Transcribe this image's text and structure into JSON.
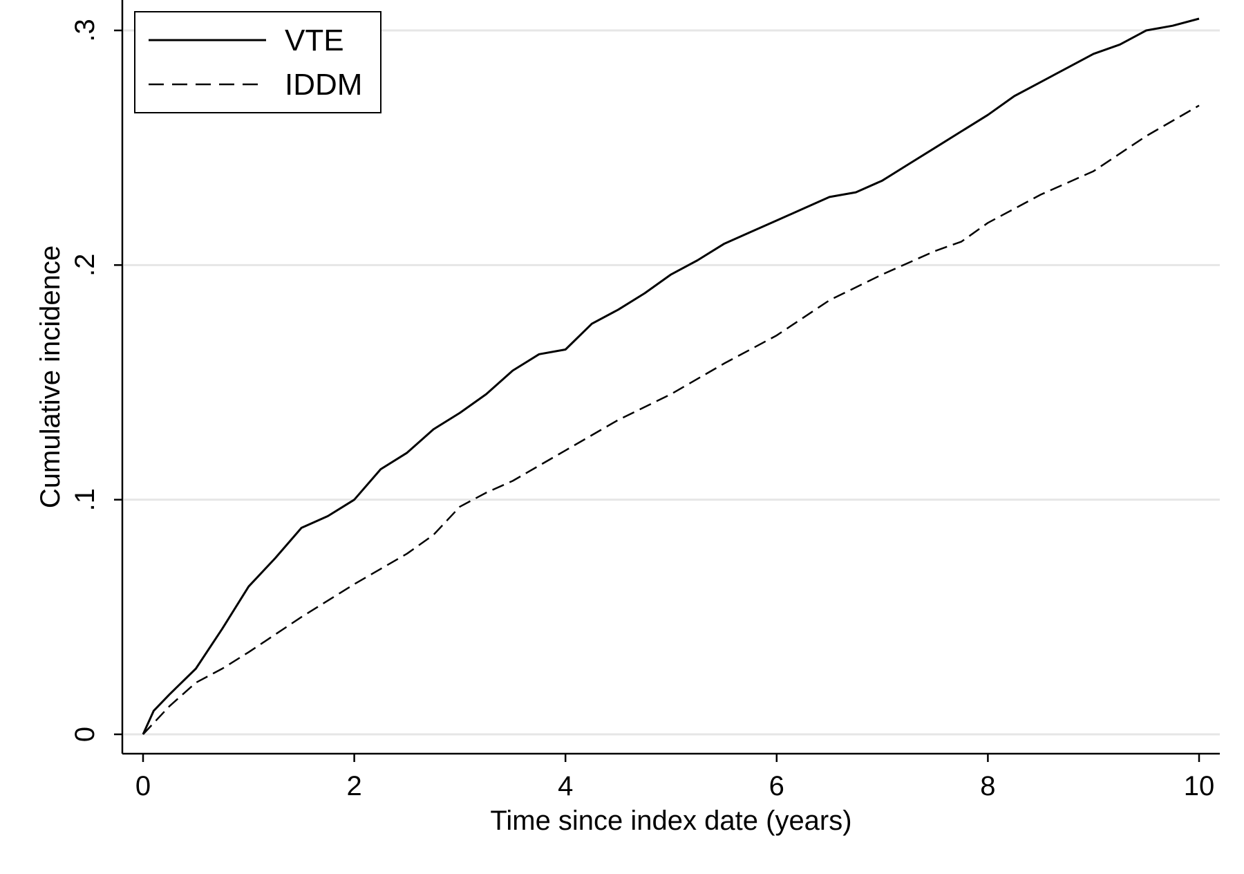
{
  "chart_data": {
    "type": "line",
    "xlabel": "Time since index date (years)",
    "ylabel": "Cumulative incidence",
    "xlim": [
      0,
      10
    ],
    "ylim": [
      0,
      0.3
    ],
    "x_ticks": [
      0,
      2,
      4,
      6,
      8,
      10
    ],
    "x_tick_labels": [
      "0",
      "2",
      "4",
      "6",
      "8",
      "10"
    ],
    "y_ticks": [
      0,
      0.1,
      0.2,
      0.3
    ],
    "y_tick_labels": [
      "0",
      ".1",
      ".2",
      ".3"
    ],
    "grid": true,
    "legend_position": "top-left",
    "series": [
      {
        "name": "VTE",
        "style": "solid",
        "color": "#000000",
        "x": [
          0,
          0.1,
          0.25,
          0.5,
          0.75,
          1.0,
          1.25,
          1.5,
          1.75,
          2.0,
          2.25,
          2.5,
          2.75,
          3.0,
          3.25,
          3.5,
          3.75,
          4.0,
          4.25,
          4.5,
          4.75,
          5.0,
          5.25,
          5.5,
          5.75,
          6.0,
          6.25,
          6.5,
          6.75,
          7.0,
          7.25,
          7.5,
          7.75,
          8.0,
          8.25,
          8.5,
          8.75,
          9.0,
          9.25,
          9.5,
          9.75,
          10.0
        ],
        "y": [
          0,
          0.01,
          0.017,
          0.028,
          0.045,
          0.063,
          0.075,
          0.088,
          0.093,
          0.1,
          0.113,
          0.12,
          0.13,
          0.137,
          0.145,
          0.155,
          0.162,
          0.164,
          0.175,
          0.181,
          0.188,
          0.196,
          0.202,
          0.209,
          0.214,
          0.219,
          0.224,
          0.229,
          0.231,
          0.236,
          0.243,
          0.25,
          0.257,
          0.264,
          0.272,
          0.278,
          0.284,
          0.29,
          0.294,
          0.3,
          0.302,
          0.305
        ]
      },
      {
        "name": "IDDM",
        "style": "dashed",
        "color": "#000000",
        "x": [
          0,
          0.25,
          0.5,
          0.75,
          1.0,
          1.5,
          2.0,
          2.5,
          2.75,
          3.0,
          3.25,
          3.5,
          4.0,
          4.5,
          5.0,
          5.5,
          6.0,
          6.5,
          7.0,
          7.5,
          7.75,
          8.0,
          8.5,
          9.0,
          9.5,
          10.0
        ],
        "y": [
          0,
          0.012,
          0.022,
          0.028,
          0.035,
          0.05,
          0.064,
          0.077,
          0.085,
          0.097,
          0.103,
          0.108,
          0.121,
          0.134,
          0.145,
          0.158,
          0.17,
          0.185,
          0.196,
          0.206,
          0.21,
          0.218,
          0.23,
          0.24,
          0.255,
          0.268
        ]
      }
    ]
  }
}
